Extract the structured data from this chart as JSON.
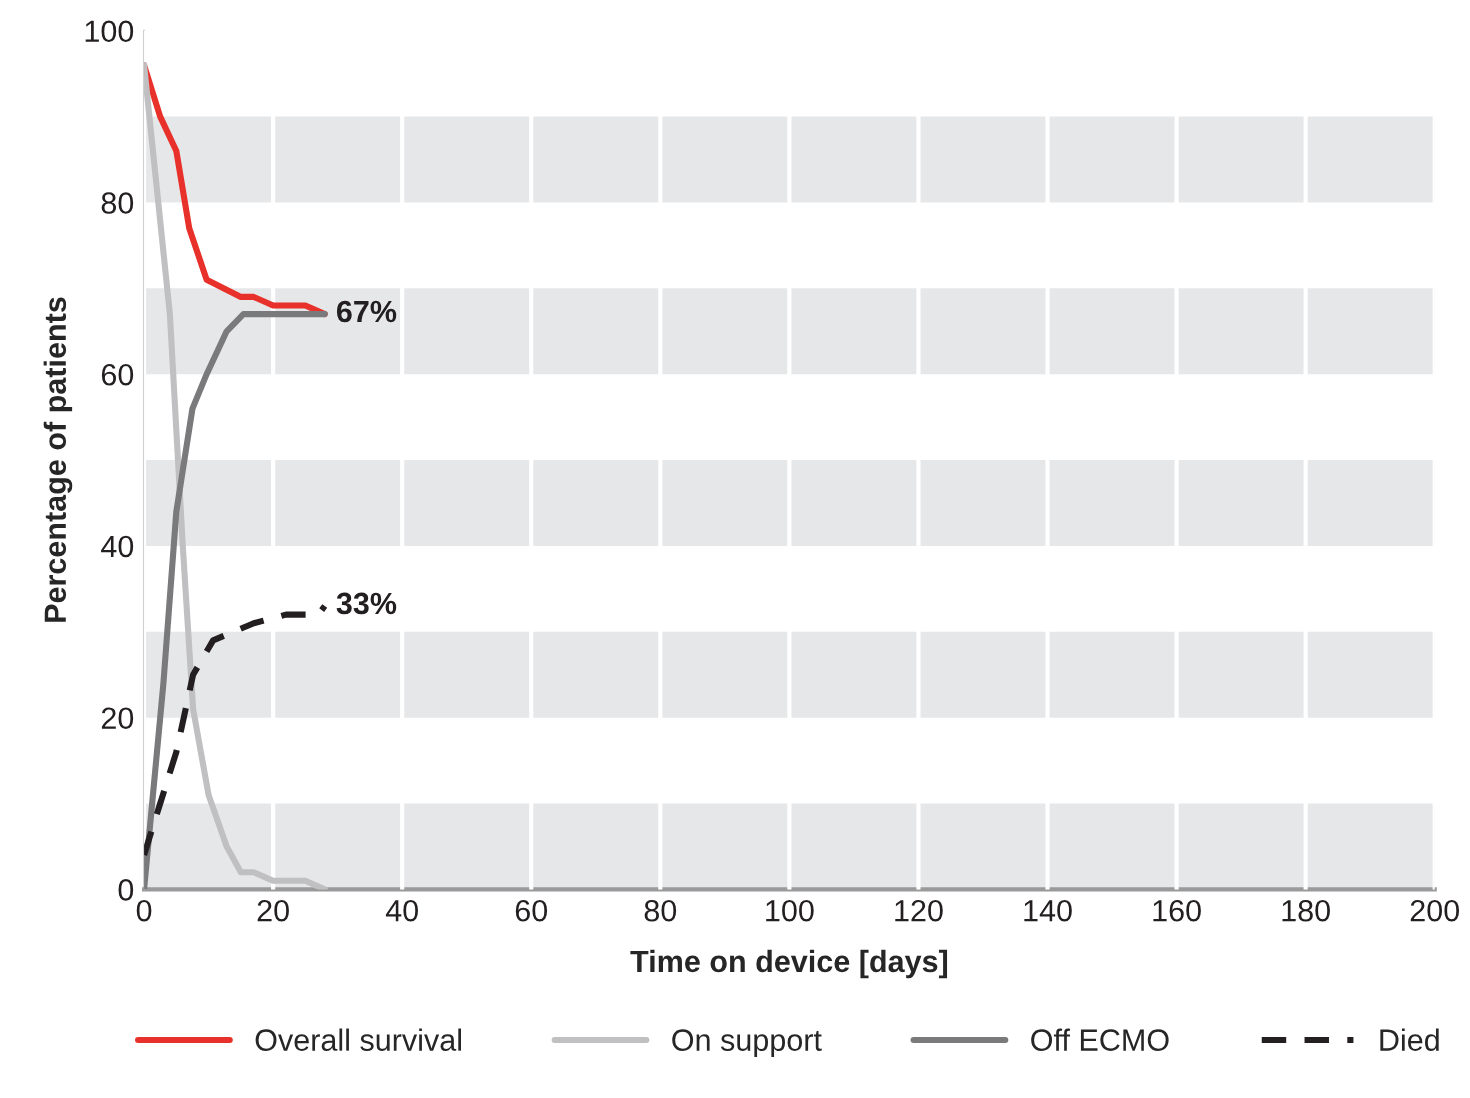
{
  "chart_data": {
    "type": "line",
    "xlabel": "Time on device [days]",
    "ylabel": "Percentage of patients",
    "xlim": [
      0,
      200
    ],
    "xticks": [
      0,
      20,
      40,
      60,
      80,
      100,
      120,
      140,
      160,
      180,
      200
    ],
    "ylim": [
      0,
      100
    ],
    "yticks": [
      0,
      20,
      40,
      60,
      80,
      100
    ],
    "grid": "x",
    "legend": "bottom",
    "marker": "none",
    "bands": [
      {
        "axis": "y",
        "from": 0,
        "to": 10,
        "color": "#e6e7e9"
      },
      {
        "axis": "y",
        "from": 20,
        "to": 30,
        "color": "#e6e7e9"
      },
      {
        "axis": "y",
        "from": 40,
        "to": 50,
        "color": "#e6e7e9"
      },
      {
        "axis": "y",
        "from": 60,
        "to": 70,
        "color": "#e6e7e9"
      },
      {
        "axis": "y",
        "from": 80,
        "to": 90,
        "color": "#e6e7e9"
      }
    ],
    "series": [
      {
        "name": "Overall survival",
        "color": "#e8312a",
        "line_style": "solid",
        "x": [
          0,
          2.5,
          5,
          7,
          9.7,
          15,
          17,
          20,
          25,
          28
        ],
        "values": [
          96,
          90,
          86,
          77,
          71,
          69,
          69,
          68,
          68,
          67
        ]
      },
      {
        "name": "On support",
        "color": "#c0c0c2",
        "line_style": "solid",
        "x": [
          0,
          4,
          6,
          7.6,
          10,
          12.8,
          15,
          17,
          20,
          25,
          28
        ],
        "values": [
          96,
          67,
          40,
          21,
          11,
          5,
          2,
          2,
          1,
          1,
          0
        ]
      },
      {
        "name": "Off ECMO",
        "color": "#7a7a7c",
        "line_style": "solid",
        "x": [
          0,
          3,
          5,
          7.5,
          9.7,
          12.8,
          15.4,
          20,
          25,
          28
        ],
        "values": [
          0,
          24,
          44,
          56,
          60,
          65,
          67,
          67,
          67,
          67
        ]
      },
      {
        "name": "Died",
        "color": "#231f20",
        "line_style": "dashed",
        "x": [
          0,
          2.5,
          5,
          7.6,
          10.7,
          17,
          22,
          27,
          28
        ],
        "values": [
          4,
          10,
          16,
          25,
          29,
          31,
          32,
          32,
          33
        ]
      }
    ],
    "annotations": [
      {
        "text": "67%",
        "x": 28,
        "y": 67
      },
      {
        "text": "33%",
        "x": 28,
        "y": 33
      }
    ]
  }
}
